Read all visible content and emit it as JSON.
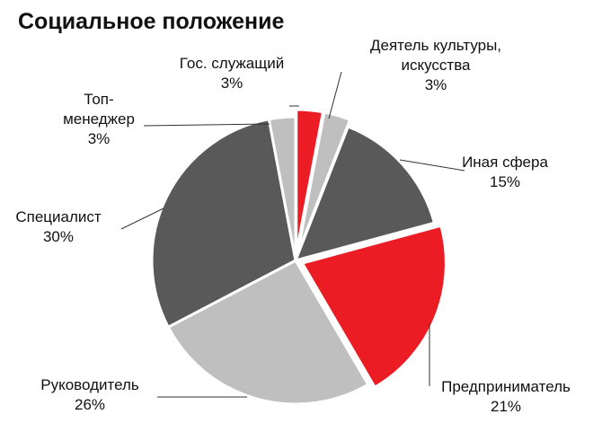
{
  "chart_data": {
    "type": "pie",
    "title": "Социальное положение",
    "categories": [
      "Гос. служащий",
      "Деятель культуры,\nискусства",
      "Иная сфера",
      "Предприниматель",
      "Руководитель",
      "Специалист",
      "Топ-\nменеджер"
    ],
    "values": [
      3,
      3,
      15,
      21,
      26,
      30,
      3
    ],
    "value_labels": [
      "3%",
      "3%",
      "15%",
      "21%",
      "26%",
      "30%",
      "3%"
    ],
    "colors": [
      "#ec1c24",
      "#bfbfbf",
      "#595959",
      "#ec1c24",
      "#bfbfbf",
      "#595959",
      "#bfbfbf"
    ]
  }
}
